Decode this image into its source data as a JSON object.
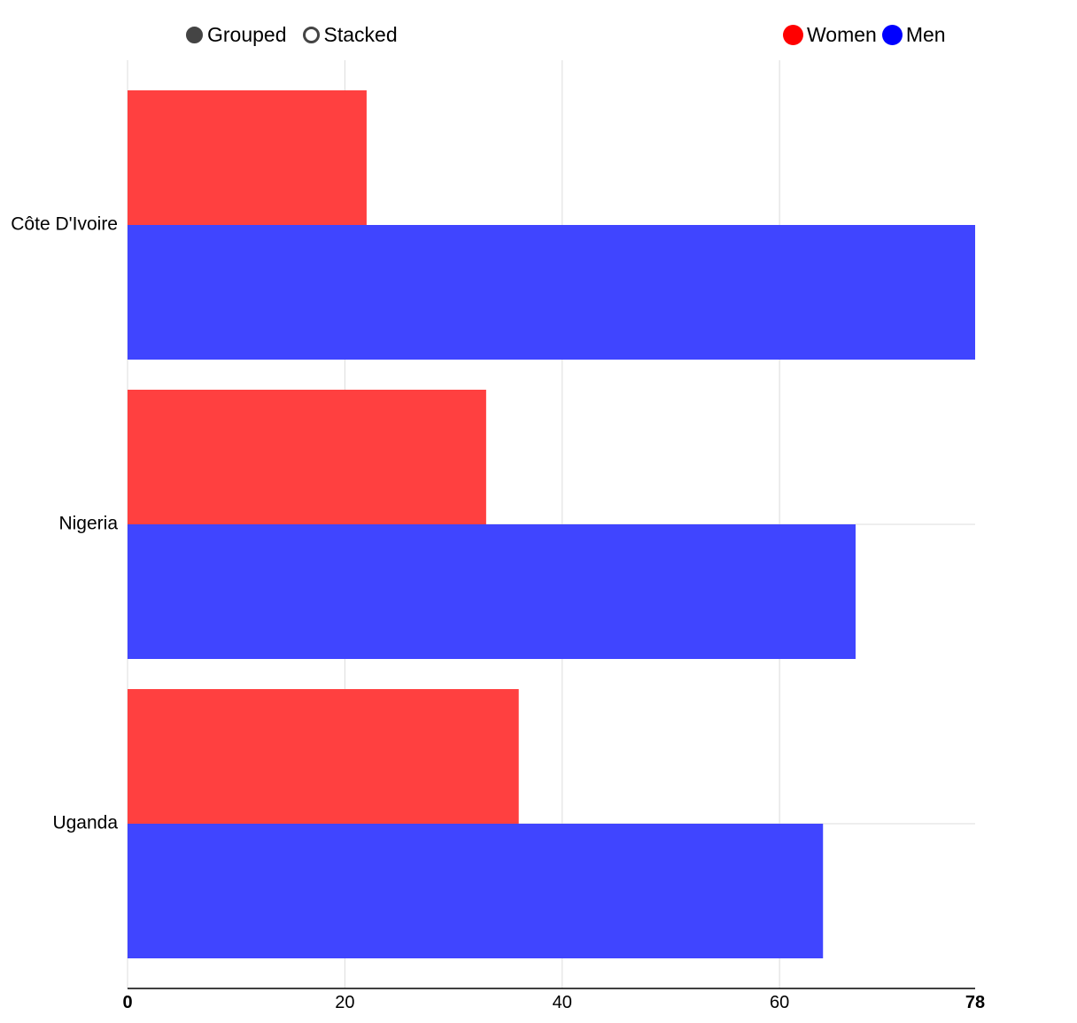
{
  "controls": {
    "grouped_label": "Grouped",
    "stacked_label": "Stacked",
    "selected": "grouped"
  },
  "legend": [
    {
      "label": "Women",
      "color": "#ff0000"
    },
    {
      "label": "Men",
      "color": "#0000ff"
    }
  ],
  "chart_data": {
    "type": "bar",
    "orientation": "horizontal",
    "mode": "grouped",
    "categories": [
      "Côte D'Ivoire",
      "Nigeria",
      "Uganda"
    ],
    "series": [
      {
        "name": "Women",
        "color": "#ff4040",
        "values": [
          22,
          33,
          36
        ]
      },
      {
        "name": "Men",
        "color": "#4045ff",
        "values": [
          78,
          67,
          64
        ]
      }
    ],
    "xlim": [
      0,
      78
    ],
    "x_ticks": [
      "0",
      "20",
      "40",
      "60",
      "78"
    ],
    "x_tick_values": [
      0,
      20,
      40,
      60,
      78
    ],
    "grid": true,
    "legend_position": "top-right"
  }
}
